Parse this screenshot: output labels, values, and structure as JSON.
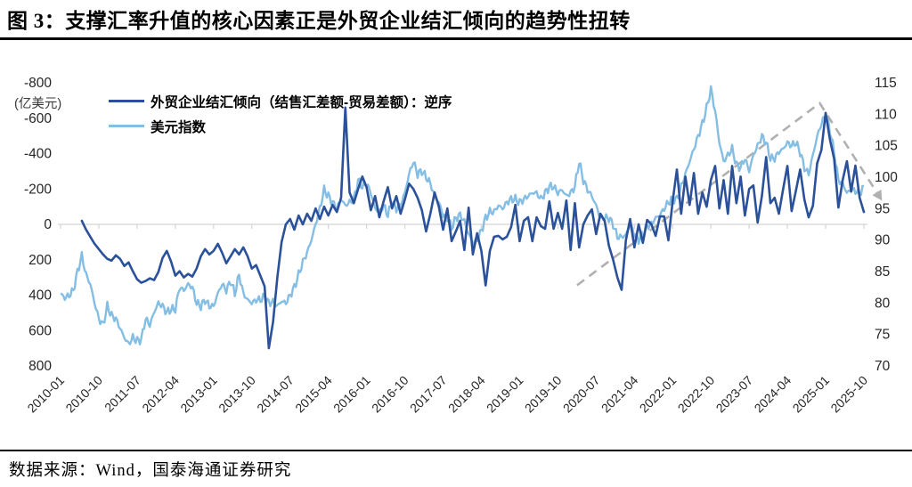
{
  "title": "图 3：支撑汇率升值的核心因素正是外贸企业结汇倾向的趋势性扭转",
  "footer": {
    "source_text": "数据来源：Wind，国泰海通证券研究"
  },
  "chart_data": {
    "type": "line",
    "unit_label": "(亿美元)",
    "x_start": "2010-01",
    "x_end": "2025-10",
    "x_tick_interval_months": 9,
    "x_tick_labels": [
      "2010-01",
      "2010-10",
      "2011-07",
      "2012-04",
      "2013-01",
      "2013-10",
      "2014-07",
      "2015-04",
      "2016-01",
      "2016-10",
      "2017-07",
      "2018-04",
      "2019-01",
      "2019-10",
      "2020-07",
      "2021-04",
      "2022-01",
      "2022-10",
      "2023-07",
      "2024-04",
      "2025-01",
      "2025-10"
    ],
    "left_axis": {
      "min": -800,
      "max": 800,
      "step": 200,
      "inverted": true,
      "ticks": [
        -800,
        -600,
        -400,
        -200,
        0,
        200,
        400,
        600,
        800
      ]
    },
    "right_axis": {
      "min": 70,
      "max": 115,
      "step": 5,
      "ticks": [
        115,
        110,
        105,
        100,
        95,
        90,
        85,
        80,
        75,
        70
      ]
    },
    "gridline": {
      "zero_line": true,
      "color": "#D4D4D4"
    },
    "series": [
      {
        "name": "外贸企业结汇倾向（结售汇差额-贸易差额）：逆序",
        "axis": "left",
        "color": "#2A5199",
        "monthly_values": [
          null,
          null,
          null,
          null,
          null,
          -20,
          30,
          70,
          110,
          140,
          170,
          195,
          205,
          175,
          195,
          235,
          215,
          265,
          310,
          330,
          320,
          305,
          315,
          270,
          190,
          150,
          210,
          290,
          265,
          300,
          280,
          295,
          250,
          180,
          140,
          170,
          150,
          110,
          160,
          220,
          180,
          140,
          170,
          130,
          180,
          250,
          230,
          290,
          350,
          700,
          550,
          300,
          100,
          0,
          -30,
          30,
          -50,
          0,
          -60,
          -20,
          -90,
          -30,
          -100,
          -50,
          -110,
          -70,
          -150,
          -660,
          -180,
          -120,
          -200,
          -270,
          -210,
          -80,
          -160,
          -40,
          -130,
          -210,
          -90,
          -160,
          -60,
          -140,
          -230,
          -200,
          -150,
          -80,
          40,
          -60,
          -180,
          -100,
          30,
          -90,
          95,
          40,
          -20,
          145,
          -95,
          170,
          50,
          150,
          345,
          150,
          70,
          65,
          85,
          70,
          15,
          -110,
          95,
          -20,
          -40,
          95,
          -40,
          10,
          25,
          -130,
          25,
          -65,
          25,
          -135,
          145,
          -120,
          130,
          0,
          -50,
          -85,
          55,
          -60,
          -20,
          120,
          200,
          300,
          370,
          90,
          -30,
          130,
          0,
          105,
          -25,
          0,
          65,
          -45,
          -45,
          90,
          -130,
          -310,
          -60,
          -270,
          -110,
          -290,
          -60,
          -180,
          -100,
          -250,
          -330,
          -90,
          -250,
          -60,
          -330,
          -120,
          -270,
          -50,
          -200,
          -220,
          -10,
          -160,
          -380,
          -120,
          -150,
          -60,
          -200,
          -330,
          -75,
          -190,
          -310,
          -140,
          -40,
          -105,
          -345,
          -420,
          -630,
          -480,
          -370,
          -95,
          -250,
          -357,
          -186,
          -332,
          -150,
          -70
        ]
      },
      {
        "name": "美元指数",
        "axis": "right",
        "color": "#85BEE4",
        "monthly_values": [
          81.5,
          80.8,
          81.2,
          82.0,
          85.0,
          87.5,
          84.5,
          83.0,
          80.0,
          77.5,
          76.5,
          79.5,
          78.0,
          77.5,
          76.0,
          74.5,
          73.5,
          74.5,
          74.0,
          74.2,
          77.5,
          76.5,
          78.5,
          80.0,
          79.5,
          78.5,
          79.0,
          79.0,
          82.5,
          82.0,
          83.0,
          82.5,
          80.0,
          79.5,
          80.5,
          79.5,
          79.5,
          81.5,
          83.0,
          82.0,
          83.5,
          81.5,
          84.5,
          81.5,
          80.5,
          80.0,
          80.5,
          80.5,
          81.0,
          80.0,
          80.2,
          79.5,
          80.3,
          80.0,
          81.2,
          82.5,
          84.5,
          86.5,
          88.0,
          90.0,
          92.5,
          95.0,
          98.0,
          97.0,
          96.0,
          95.0,
          96.5,
          95.5,
          96.0,
          96.5,
          99.5,
          98.5,
          99.0,
          97.5,
          95.0,
          94.5,
          95.5,
          94.0,
          96.0,
          95.0,
          95.5,
          97.5,
          100.5,
          102.5,
          100.5,
          101.0,
          100.0,
          99.0,
          97.0,
          96.0,
          94.0,
          93.5,
          92.0,
          93.5,
          94.0,
          93.0,
          91.0,
          89.5,
          90.0,
          91.5,
          93.5,
          94.5,
          94.5,
          95.5,
          95.0,
          96.0,
          96.5,
          96.5,
          96.0,
          96.5,
          97.0,
          97.5,
          97.5,
          96.5,
          97.5,
          98.5,
          98.5,
          97.5,
          98.0,
          97.0,
          97.5,
          98.5,
          102.5,
          99.5,
          98.0,
          97.0,
          95.5,
          93.5,
          93.5,
          93.5,
          92.5,
          90.5,
          90.5,
          90.8,
          92.5,
          91.0,
          90.0,
          91.0,
          92.2,
          92.6,
          93.5,
          94.0,
          95.0,
          96.0,
          96.5,
          96.5,
          98.5,
          100.5,
          102.5,
          104.5,
          106.5,
          108.5,
          111.0,
          114.0,
          110.5,
          105.5,
          102.5,
          103.5,
          104.5,
          102.0,
          101.5,
          103.0,
          101.0,
          103.5,
          105.0,
          106.5,
          105.5,
          103.0,
          103.0,
          104.0,
          104.5,
          105.5,
          105.0,
          105.5,
          104.0,
          101.5,
          100.5,
          103.5,
          106.5,
          108.5,
          110.0,
          107.5,
          104.0,
          99.5,
          99.0,
          97.5,
          98.0,
          97.8,
          97.5,
          98.3
        ]
      }
    ],
    "trend_annotation": {
      "style": "dashed-arrow",
      "color": "#B0B0B0",
      "points_frac": [
        [
          0.643,
          0.715
        ],
        [
          0.945,
          0.072
        ],
        [
          1.016,
          0.387
        ]
      ]
    }
  }
}
